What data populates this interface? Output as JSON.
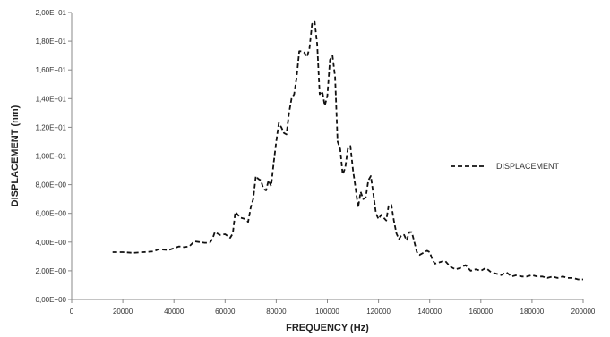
{
  "chart_data": {
    "type": "line",
    "title": "",
    "xlabel": "FREQUENCY (Hz)",
    "ylabel": "DISPLACEMENT (nm)",
    "xlim": [
      0,
      200000
    ],
    "ylim": [
      0,
      20
    ],
    "x_ticks": [
      0,
      20000,
      40000,
      60000,
      80000,
      100000,
      120000,
      140000,
      160000,
      180000,
      200000
    ],
    "x_tick_labels": [
      "0",
      "20000",
      "40000",
      "60000",
      "80000",
      "100000",
      "120000",
      "140000",
      "160000",
      "180000",
      "200000"
    ],
    "y_ticks": [
      0,
      2,
      4,
      6,
      8,
      10,
      12,
      14,
      16,
      18,
      20
    ],
    "y_tick_labels": [
      "0,00E+00",
      "2,00E+00",
      "4,00E+00",
      "6,00E+00",
      "8,00E+00",
      "1,00E+01",
      "1,20E+01",
      "1,40E+01",
      "1,60E+01",
      "1,80E+01",
      "2,00E+01"
    ],
    "grid": false,
    "legend_position": "right",
    "series": [
      {
        "name": "DISPLACEMENT",
        "color": "#111111",
        "style": "dashed",
        "x": [
          16000,
          20000,
          24000,
          28000,
          32000,
          34000,
          38000,
          42000,
          44000,
          46000,
          48000,
          50000,
          52000,
          54000,
          55000,
          56000,
          58000,
          60000,
          62000,
          63000,
          64000,
          66000,
          68000,
          69000,
          70000,
          71000,
          72000,
          73000,
          74000,
          75000,
          76000,
          77000,
          78000,
          79000,
          80000,
          81000,
          82000,
          83000,
          84000,
          85000,
          86000,
          87000,
          88000,
          89000,
          90000,
          91000,
          92000,
          93000,
          94000,
          95000,
          96000,
          97000,
          98000,
          99000,
          100000,
          101000,
          102000,
          103000,
          104000,
          105000,
          106000,
          107000,
          108000,
          109000,
          110000,
          111000,
          112000,
          113000,
          114000,
          115000,
          116000,
          117000,
          118000,
          119000,
          120000,
          121000,
          122000,
          123000,
          124000,
          125000,
          126000,
          127000,
          128000,
          129000,
          130000,
          131000,
          132000,
          133000,
          134000,
          135000,
          136000,
          137000,
          138000,
          139000,
          140000,
          141000,
          142000,
          144000,
          146000,
          148000,
          150000,
          152000,
          154000,
          156000,
          158000,
          160000,
          162000,
          164000,
          166000,
          168000,
          170000,
          172000,
          174000,
          176000,
          178000,
          180000,
          182000,
          184000,
          186000,
          188000,
          190000,
          192000,
          194000,
          196000,
          198000,
          200000
        ],
        "y": [
          3.3,
          3.3,
          3.25,
          3.3,
          3.35,
          3.5,
          3.45,
          3.7,
          3.65,
          3.7,
          4.05,
          4.0,
          3.95,
          3.95,
          4.2,
          4.7,
          4.5,
          4.55,
          4.3,
          4.6,
          6.1,
          5.7,
          5.6,
          5.4,
          6.4,
          7.0,
          8.6,
          8.4,
          8.3,
          7.7,
          7.6,
          8.3,
          7.9,
          9.5,
          11.0,
          12.3,
          12.0,
          11.6,
          11.5,
          13.0,
          14.0,
          14.3,
          15.5,
          17.3,
          17.3,
          17.2,
          16.9,
          17.5,
          19.2,
          19.4,
          17.8,
          14.3,
          14.5,
          13.5,
          14.2,
          16.7,
          17.0,
          15.5,
          11.0,
          10.5,
          8.7,
          9.2,
          10.5,
          10.7,
          9.0,
          7.8,
          6.4,
          7.5,
          7.0,
          7.1,
          8.3,
          8.6,
          7.3,
          6.0,
          5.6,
          5.9,
          5.7,
          5.5,
          6.6,
          6.6,
          5.5,
          4.6,
          4.2,
          4.5,
          4.5,
          4.1,
          4.7,
          4.7,
          4.0,
          3.3,
          3.1,
          3.2,
          3.3,
          3.4,
          3.3,
          2.8,
          2.5,
          2.6,
          2.7,
          2.3,
          2.1,
          2.2,
          2.4,
          2.0,
          2.1,
          2.0,
          2.2,
          1.9,
          1.8,
          1.7,
          1.9,
          1.6,
          1.7,
          1.6,
          1.6,
          1.7,
          1.6,
          1.6,
          1.5,
          1.6,
          1.5,
          1.6,
          1.5,
          1.5,
          1.4,
          1.4
        ]
      }
    ]
  }
}
